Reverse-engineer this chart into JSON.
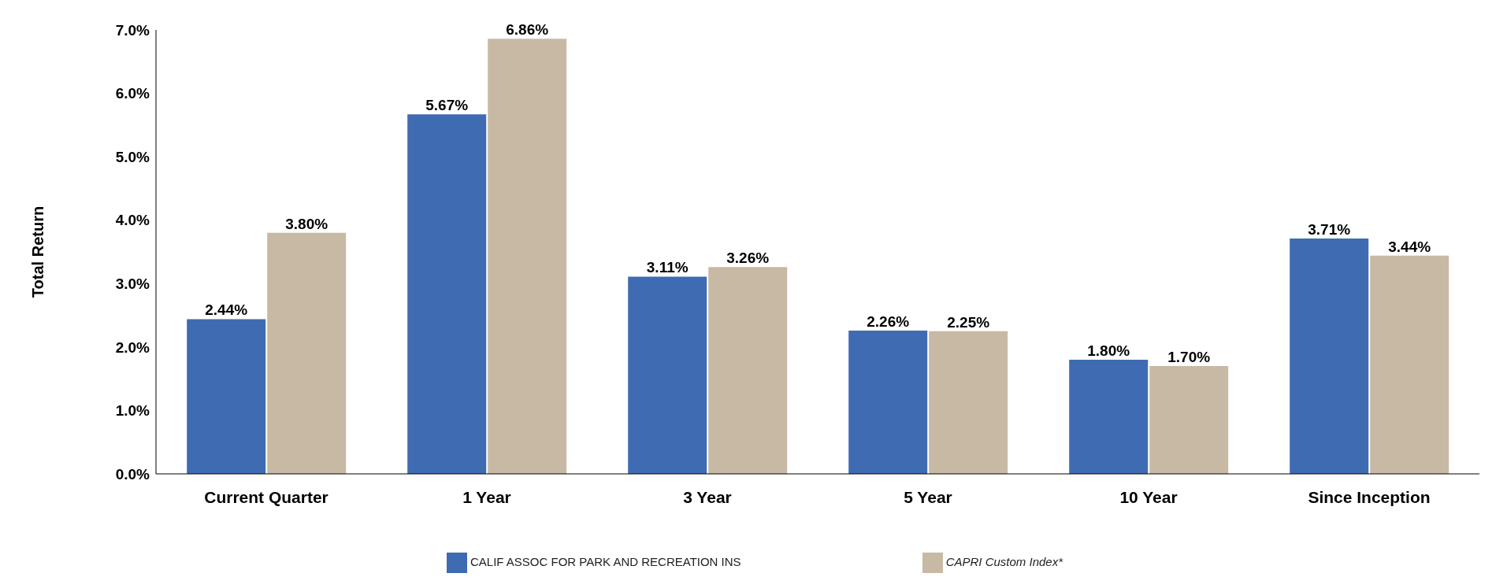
{
  "chart_data": {
    "type": "bar",
    "ylabel": "Total Return",
    "categories": [
      "Current Quarter",
      "1 Year",
      "3 Year",
      "5 Year",
      "10 Year",
      "Since Inception"
    ],
    "series": [
      {
        "name": "CALIF ASSOC FOR PARK AND RECREATION INS",
        "color": "#3f6bb3",
        "values": [
          2.44,
          5.67,
          3.11,
          2.26,
          1.8,
          3.71
        ],
        "value_labels": [
          "2.44%",
          "5.67%",
          "3.11%",
          "2.26%",
          "1.80%",
          "3.71%"
        ]
      },
      {
        "name": "CAPRI Custom Index*",
        "color": "#c8b9a5",
        "values": [
          3.8,
          6.86,
          3.26,
          2.25,
          1.7,
          3.44
        ],
        "value_labels": [
          "3.80%",
          "6.86%",
          "3.26%",
          "2.25%",
          "1.70%",
          "3.44%"
        ]
      }
    ],
    "ylim": [
      0,
      7
    ],
    "yticks": [
      {
        "value": 0,
        "label": "0.0%"
      },
      {
        "value": 1,
        "label": "1.0%"
      },
      {
        "value": 2,
        "label": "2.0%"
      },
      {
        "value": 3,
        "label": "3.0%"
      },
      {
        "value": 4,
        "label": "4.0%"
      },
      {
        "value": 5,
        "label": "5.0%"
      },
      {
        "value": 6,
        "label": "6.0%"
      },
      {
        "value": 7,
        "label": "7.0%"
      }
    ],
    "grid": false,
    "legend": "bottom"
  }
}
